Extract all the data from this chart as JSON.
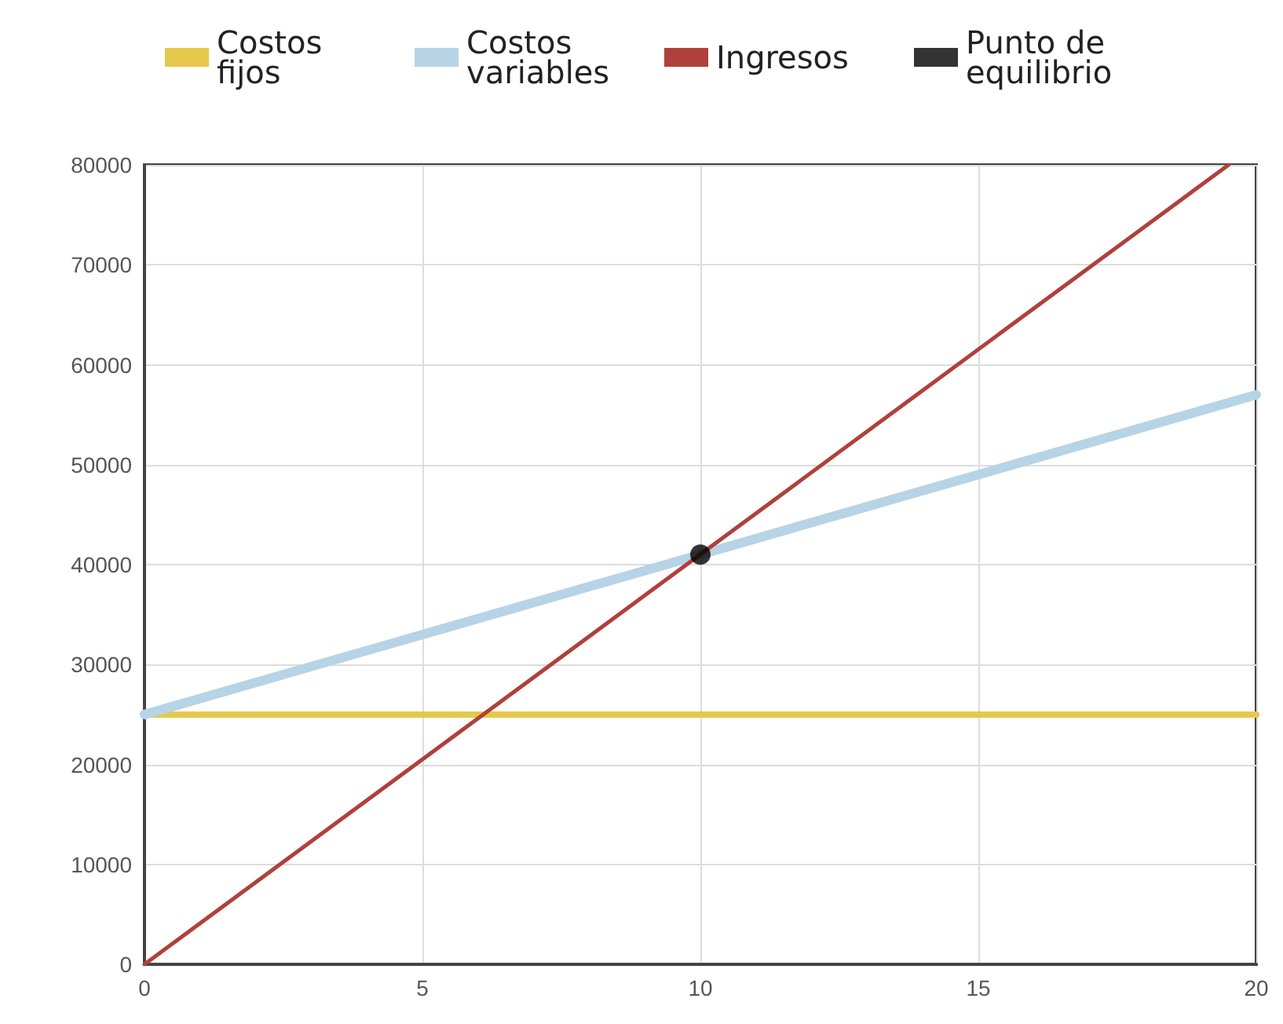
{
  "chart_data": {
    "type": "line",
    "grid": true,
    "legend": "top left",
    "xlim": [
      0,
      20
    ],
    "xticks": [
      0,
      5,
      10,
      15,
      20
    ],
    "ylim": [
      0,
      80000
    ],
    "yticks": [
      0,
      10000,
      20000,
      30000,
      40000,
      50000,
      60000,
      70000,
      80000
    ],
    "series": [
      {
        "name": "Costos fijos",
        "color": "#e6c84a",
        "marker": "none",
        "x": [
          0,
          20
        ],
        "values": [
          25000,
          25000
        ]
      },
      {
        "name": "Costos variables",
        "color": "#b7d3e6",
        "marker": "none",
        "x": [
          0,
          20
        ],
        "values": [
          25000,
          57000
        ]
      },
      {
        "name": "Ingresos",
        "color": "#b0403c",
        "marker": "none",
        "x": [
          0,
          19.5
        ],
        "values": [
          0,
          80000
        ]
      },
      {
        "name": "Punto de equilibrio",
        "type": "scatter",
        "color": "#000000",
        "marker": "circle",
        "x": [
          10
        ],
        "values": [
          41000
        ]
      }
    ]
  }
}
